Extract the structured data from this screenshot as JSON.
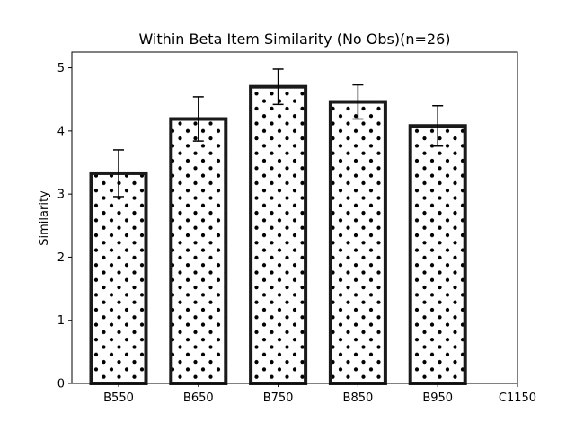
{
  "chart_data": {
    "type": "bar",
    "title": "Within Beta Item Similarity (No Obs)(n=26)",
    "xlabel": "",
    "ylabel": "Similarity",
    "categories": [
      "B550",
      "B650",
      "B750",
      "B850",
      "B950",
      "C1150"
    ],
    "values": [
      3.33,
      4.19,
      4.7,
      4.46,
      4.08,
      null
    ],
    "error": [
      0.37,
      0.35,
      0.28,
      0.27,
      0.32,
      null
    ],
    "ylim": [
      0,
      5.25
    ],
    "yticks": [
      0,
      1,
      2,
      3,
      4,
      5
    ],
    "grid": false,
    "bar_fill": "#ffffff",
    "bar_edge": "#1a1a1a",
    "hatch": "dots"
  }
}
